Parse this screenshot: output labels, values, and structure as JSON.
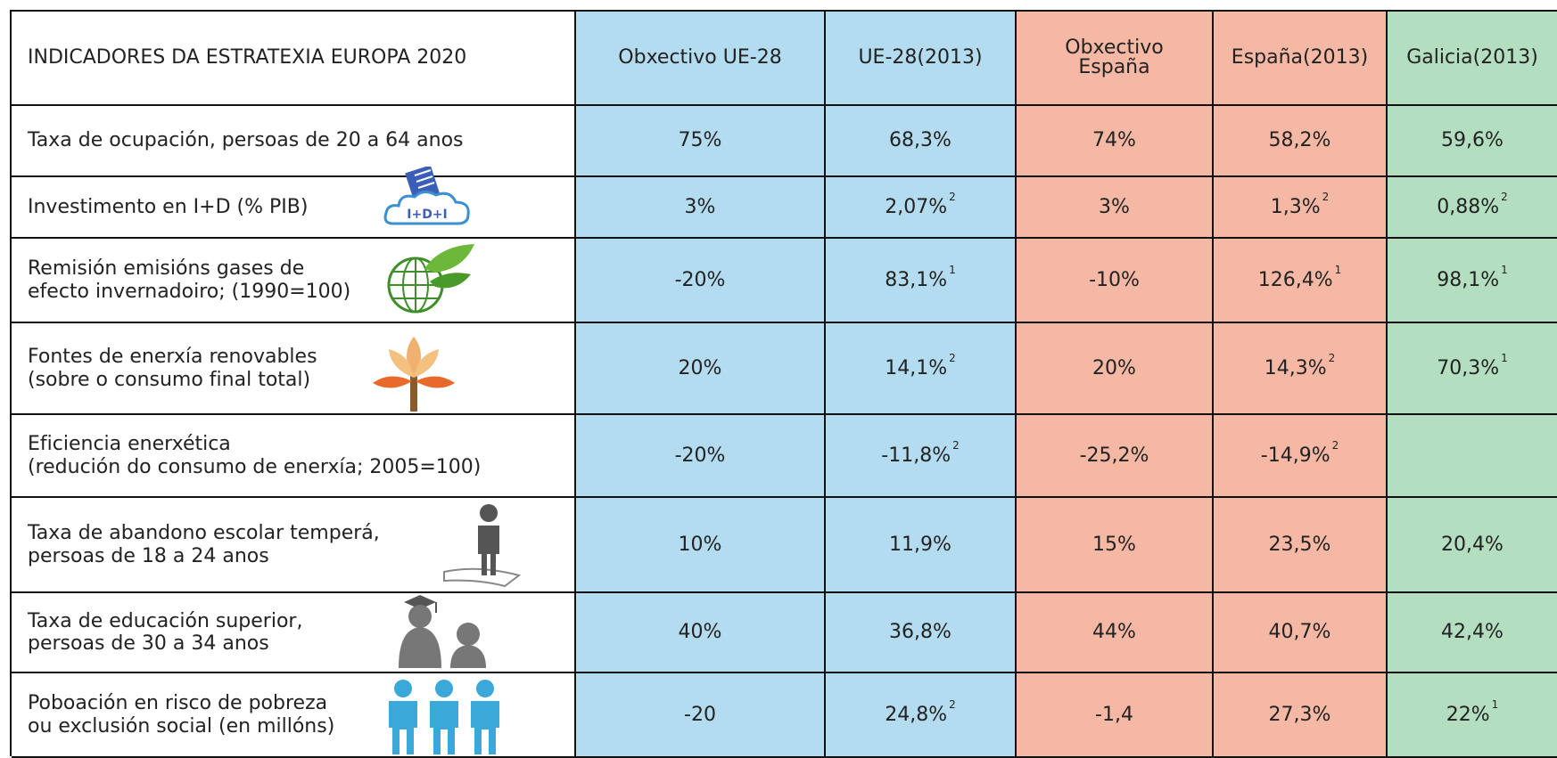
{
  "header": {
    "title": "INDICADORES DA ESTRATEXIA EUROPA 2020",
    "columns": [
      [
        "Obxectivo UE-28"
      ],
      [
        "UE-28(2013)"
      ],
      [
        "Obxectivo",
        "España"
      ],
      [
        "España(2013)"
      ],
      [
        "Galicia(2013)"
      ]
    ]
  },
  "rows": [
    {
      "label": [
        "Taxa de ocupación, persoas de 20 a 64 anos"
      ],
      "cells": [
        {
          "value": "75%"
        },
        {
          "value": "68,3%"
        },
        {
          "value": "74%"
        },
        {
          "value": "58,2%"
        },
        {
          "value": "59,6%"
        }
      ]
    },
    {
      "label": [
        "Investimento en I+D (% PIB)"
      ],
      "cells": [
        {
          "value": "3%"
        },
        {
          "value": "2,07%",
          "note": "2"
        },
        {
          "value": "3%"
        },
        {
          "value": "1,3%",
          "note": "2"
        },
        {
          "value": "0,88%",
          "note": "2"
        }
      ]
    },
    {
      "label": [
        "Remisión emisións gases de",
        "efecto invernadoiro; (1990=100)"
      ],
      "cells": [
        {
          "value": "-20%"
        },
        {
          "value": "83,1%",
          "note": "1"
        },
        {
          "value": "-10%"
        },
        {
          "value": "126,4%",
          "note": "1"
        },
        {
          "value": "98,1%",
          "note": "1"
        }
      ]
    },
    {
      "label": [
        "Fontes de enerxía renovables",
        "(sobre o consumo final total)"
      ],
      "cells": [
        {
          "value": "20%"
        },
        {
          "value": "14,1%",
          "note": "2"
        },
        {
          "value": "20%"
        },
        {
          "value": "14,3%",
          "note": "2"
        },
        {
          "value": "70,3%",
          "note": "1"
        }
      ]
    },
    {
      "label": [
        "Eficiencia enerxética",
        "(redución do consumo de enerxía; 2005=100)"
      ],
      "cells": [
        {
          "value": "-20%"
        },
        {
          "value": "-11,8%",
          "note": "2"
        },
        {
          "value": "-25,2%"
        },
        {
          "value": "-14,9%",
          "note": "2"
        },
        null
      ]
    },
    {
      "label": [
        "Taxa de abandono escolar temperá,",
        "persoas de 18 a 24 anos"
      ],
      "cells": [
        {
          "value": "10%"
        },
        {
          "value": "11,9%"
        },
        {
          "value": "15%"
        },
        {
          "value": "23,5%"
        },
        {
          "value": "20,4%"
        }
      ]
    },
    {
      "label": [
        "Taxa de educación superior,",
        "persoas de 30 a 34 anos"
      ],
      "cells": [
        {
          "value": "40%"
        },
        {
          "value": "36,8%"
        },
        {
          "value": "44%"
        },
        {
          "value": "40,7%"
        },
        {
          "value": "42,4%"
        }
      ]
    },
    {
      "label": [
        "Poboación en risco de pobreza",
        "ou exclusión social (en millóns)"
      ],
      "cells": [
        {
          "value": "-20"
        },
        {
          "value": "24,8%",
          "note": "2"
        },
        {
          "value": "-1,4"
        },
        {
          "value": "27,3%"
        },
        {
          "value": "22%",
          "note": "1"
        }
      ]
    }
  ]
}
